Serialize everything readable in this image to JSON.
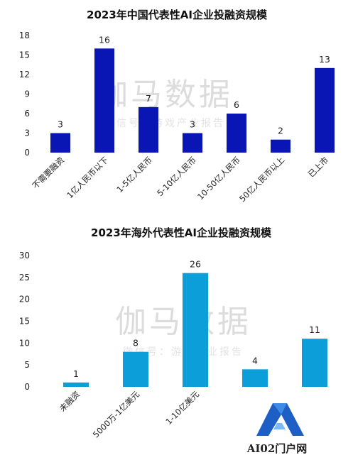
{
  "chart_data": [
    {
      "type": "bar",
      "title": "2023年中国代表性AI企业投融资规模",
      "categories": [
        "不需要融资",
        "1亿人民币以下",
        "1-5亿人民币",
        "5-10亿人民币",
        "10-50亿人民币",
        "50亿人民币以上",
        "已上市"
      ],
      "values": [
        3,
        16,
        7,
        3,
        6,
        2,
        13
      ],
      "yticks": [
        0,
        3,
        6,
        9,
        12,
        15,
        18
      ],
      "ylim": [
        0,
        18
      ],
      "grid": false,
      "color": "#0a16b4"
    },
    {
      "type": "bar",
      "title": "2023年海外代表性AI企业投融资规模",
      "categories": [
        "未融资",
        "5000万-1亿美元",
        "1-10亿美元",
        "",
        ""
      ],
      "values": [
        1,
        8,
        26,
        4,
        11
      ],
      "yticks": [
        0,
        5,
        10,
        15,
        20,
        25,
        30
      ],
      "ylim": [
        0,
        30
      ],
      "grid": false,
      "color": "#0b9ed8"
    }
  ],
  "watermark": {
    "main": "伽马数据",
    "sub": "微信号：游戏产业报告"
  },
  "logo": {
    "text": "AI02门户网"
  }
}
